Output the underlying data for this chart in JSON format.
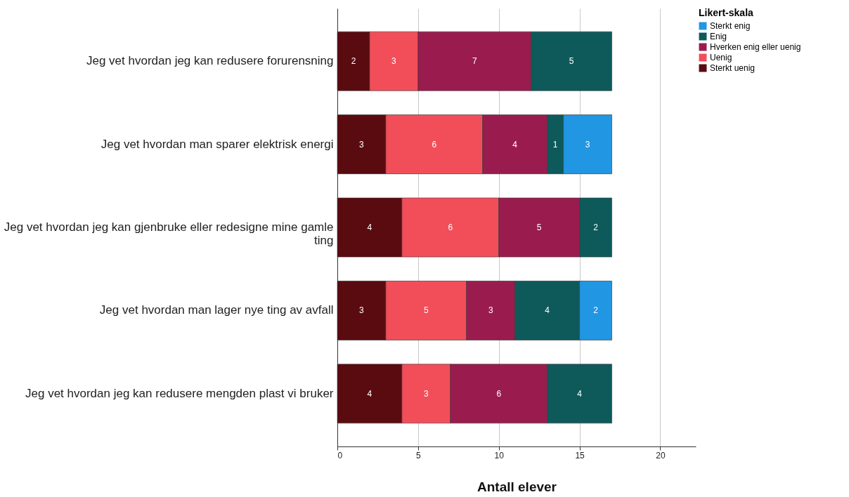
{
  "chart_data": {
    "type": "bar",
    "orientation": "horizontal",
    "stacked": true,
    "data_labels": true,
    "grid": "x",
    "legend": "top right",
    "legend_title": "Likert-skala",
    "xlabel": "Antall elever",
    "xlim": [
      0,
      22.2
    ],
    "xticks": [
      0,
      5,
      10,
      15,
      20
    ],
    "categories": [
      "Jeg vet hvordan jeg kan redusere forurensning",
      "Jeg vet hvordan man sparer elektrisk energi",
      "Jeg vet hvordan jeg kan gjenbruke eller redesigne mine gamle ting",
      "Jeg vet hvordan man lager nye ting av avfall",
      "Jeg vet hvordan jeg kan redusere mengden plast vi bruker"
    ],
    "series": [
      {
        "name": "Sterkt uenig",
        "color": "#5a0b10",
        "values": [
          2,
          3,
          4,
          3,
          4
        ]
      },
      {
        "name": "Uenig",
        "color": "#f24e5a",
        "values": [
          3,
          6,
          6,
          5,
          3
        ]
      },
      {
        "name": "Hverken enig eller uenig",
        "color": "#9a1c4e",
        "values": [
          7,
          4,
          5,
          3,
          6
        ]
      },
      {
        "name": "Enig",
        "color": "#0e5a5b",
        "values": [
          5,
          1,
          2,
          4,
          4
        ]
      },
      {
        "name": "Sterkt enig",
        "color": "#2196e3",
        "values": [
          null,
          3,
          null,
          2,
          null
        ]
      }
    ]
  }
}
